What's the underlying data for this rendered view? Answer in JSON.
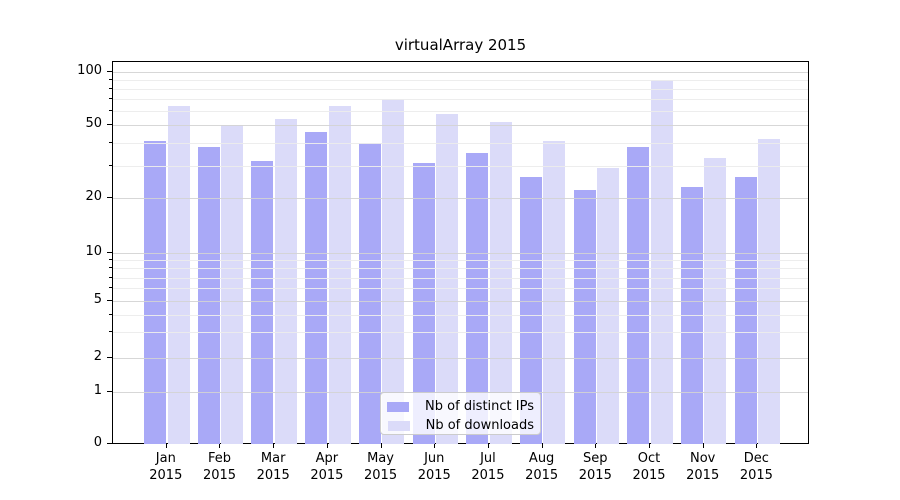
{
  "title": "virtualArray 2015",
  "legend": {
    "items": [
      {
        "label": "Nb of distinct IPs"
      },
      {
        "label": "Nb of downloads"
      }
    ]
  },
  "chart_data": {
    "type": "bar",
    "title": "virtualArray 2015",
    "categories": [
      "Jan 2015",
      "Feb 2015",
      "Mar 2015",
      "Apr 2015",
      "May 2015",
      "Jun 2015",
      "Jul 2015",
      "Aug 2015",
      "Sep 2015",
      "Oct 2015",
      "Nov 2015",
      "Dec 2015"
    ],
    "series": [
      {
        "name": "Nb of distinct IPs",
        "color": "#a9a9f7",
        "values": [
          41,
          38,
          32,
          46,
          40,
          31,
          35,
          26,
          22,
          38,
          23,
          26
        ]
      },
      {
        "name": "Nb of downloads",
        "color": "#dbdbf9",
        "values": [
          64,
          50,
          54,
          64,
          70,
          58,
          52,
          41,
          29,
          90,
          33,
          42
        ]
      }
    ],
    "xlabel": "",
    "ylabel": "",
    "yscale": "symlog",
    "yticks": [
      0,
      1,
      2,
      5,
      10,
      20,
      50,
      100
    ],
    "minor_yticks": [
      3,
      4,
      6,
      7,
      8,
      9,
      30,
      40,
      60,
      70,
      80,
      90
    ],
    "ylim": [
      0,
      111
    ],
    "grid": true,
    "legend_position": "lower center"
  }
}
